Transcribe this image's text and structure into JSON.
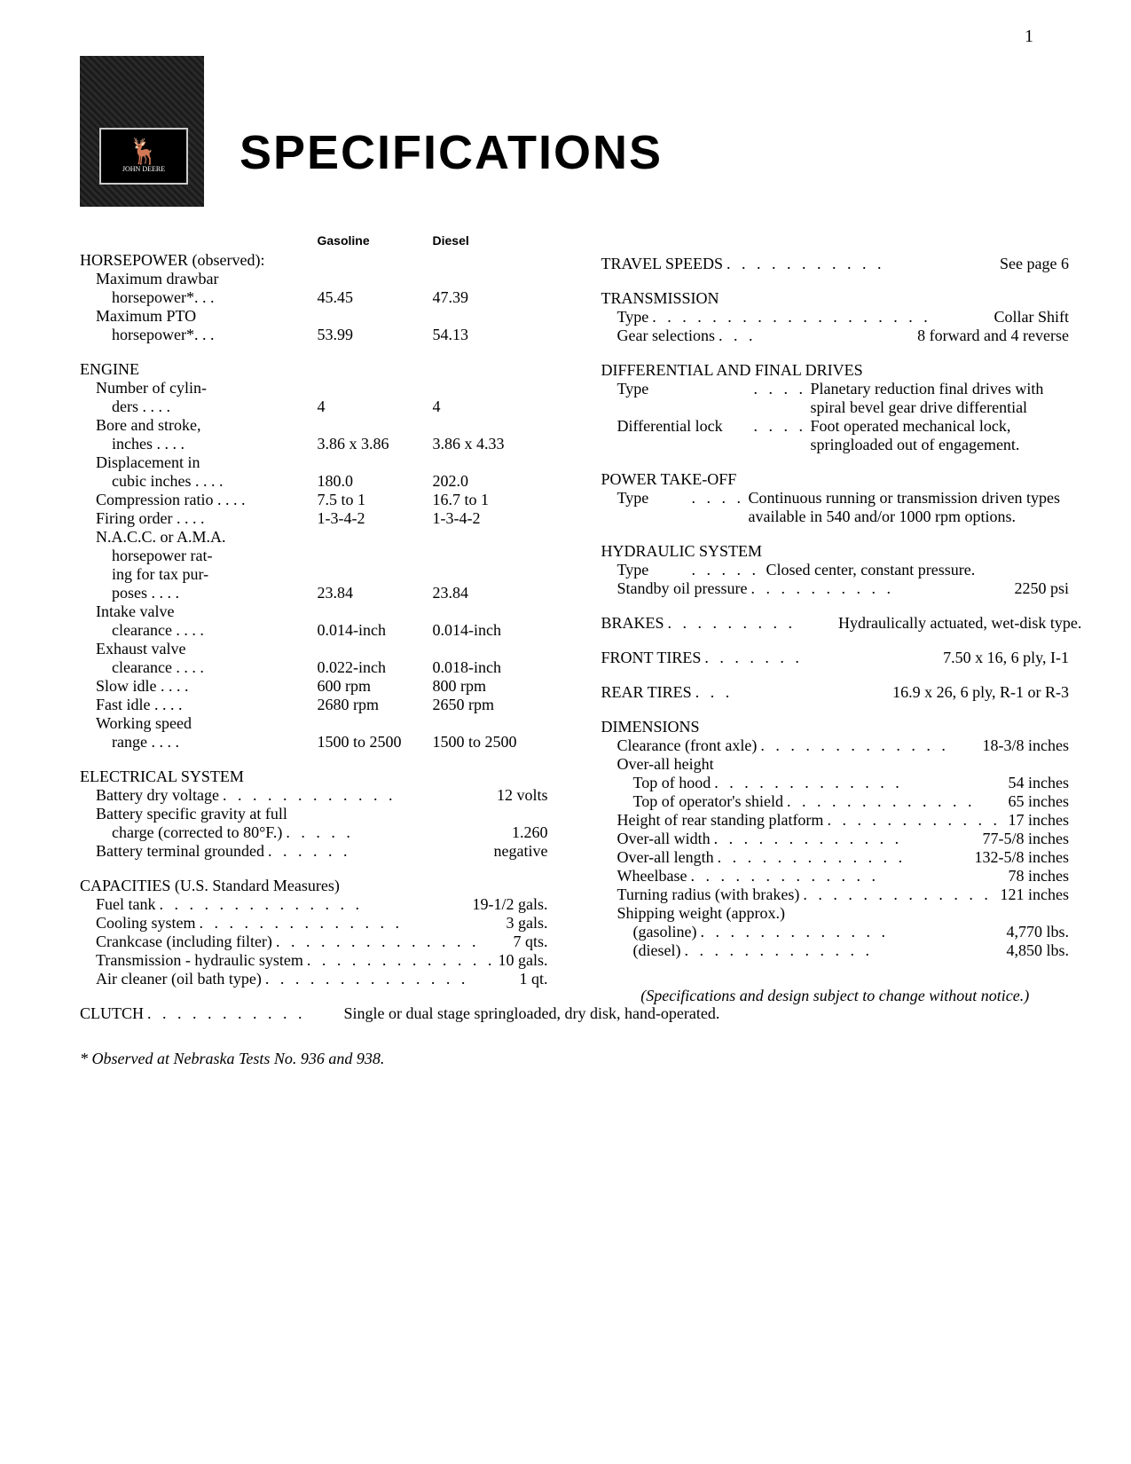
{
  "page_number": "1",
  "logo_brand": "JOHN DEERE",
  "title": "SPECIFICATIONS",
  "col_headers": {
    "c1": "Gasoline",
    "c2": "Diesel"
  },
  "horsepower": {
    "title": "HORSEPOWER (observed):",
    "rows": [
      {
        "label1": "Maximum drawbar",
        "label2": "horsepower*",
        "g": "45.45",
        "d": "47.39"
      },
      {
        "label1": "Maximum PTO",
        "label2": "horsepower*",
        "g": "53.99",
        "d": "54.13"
      }
    ]
  },
  "engine": {
    "title": "ENGINE",
    "rows": [
      {
        "l1": "Number of cylin-",
        "l2": "ders",
        "g": "4",
        "d": "4"
      },
      {
        "l1": "Bore and stroke,",
        "l2": "inches",
        "g": "3.86 x 3.86",
        "d": "3.86 x 4.33"
      },
      {
        "l1": "Displacement in",
        "l2": "cubic inches",
        "g": "180.0",
        "d": "202.0"
      },
      {
        "l1": "Compression ratio",
        "l2": "",
        "g": "7.5 to 1",
        "d": "16.7 to 1"
      },
      {
        "l1": "Firing order",
        "l2": "",
        "g": "1-3-4-2",
        "d": "1-3-4-2"
      },
      {
        "l1": "N.A.C.C. or A.M.A.",
        "l2": "horsepower rat-",
        "l3": "ing for tax pur-",
        "l4": "poses",
        "g": "23.84",
        "d": "23.84"
      },
      {
        "l1": "Intake valve",
        "l2": "clearance",
        "g": "0.014-inch",
        "d": "0.014-inch"
      },
      {
        "l1": "Exhaust valve",
        "l2": "clearance",
        "g": "0.022-inch",
        "d": "0.018-inch"
      },
      {
        "l1": "Slow idle",
        "l2": "",
        "g": "600 rpm",
        "d": "800 rpm"
      },
      {
        "l1": "Fast idle",
        "l2": "",
        "g": "2680 rpm",
        "d": "2650 rpm"
      },
      {
        "l1": "Working speed",
        "l2": "range",
        "g": "1500 to 2500",
        "d": "1500 to 2500"
      }
    ]
  },
  "electrical": {
    "title": "ELECTRICAL SYSTEM",
    "rows": [
      {
        "label": "Battery dry voltage",
        "val": "12 volts"
      },
      {
        "label": "Battery specific gravity at full",
        "label2": "charge (corrected to 80°F.)",
        "val": "1.260"
      },
      {
        "label": "Battery terminal grounded",
        "val": "negative"
      }
    ]
  },
  "capacities": {
    "title": "CAPACITIES (U.S. Standard Measures)",
    "rows": [
      {
        "label": "Fuel tank",
        "val": "19-1/2 gals."
      },
      {
        "label": "Cooling system",
        "val": "3 gals."
      },
      {
        "label": "Crankcase (including filter)",
        "val": "7 qts."
      },
      {
        "label": "Transmission - hydraulic system",
        "val": "10 gals."
      },
      {
        "label": "Air cleaner (oil bath type)",
        "val": "1 qt."
      }
    ]
  },
  "clutch": {
    "label": "CLUTCH",
    "val": "Single or dual stage springloaded, dry disk, hand-operated."
  },
  "left_footnote": "* Observed at Nebraska Tests No. 936 and 938.",
  "travel_speeds": {
    "label": "TRAVEL SPEEDS",
    "val": "See page 6"
  },
  "transmission": {
    "title": "TRANSMISSION",
    "rows": [
      {
        "label": "Type",
        "val": "Collar Shift"
      },
      {
        "label": "Gear selections",
        "val": "8 forward and 4 reverse"
      }
    ]
  },
  "differential": {
    "title": "DIFFERENTIAL AND FINAL DRIVES",
    "rows": [
      {
        "label": "Type",
        "val": "Planetary reduction final drives with spiral bevel gear drive differential"
      },
      {
        "label": "Differential lock",
        "val": "Foot operated mechanical lock, springloaded out of engagement."
      }
    ]
  },
  "pto": {
    "title": "POWER TAKE-OFF",
    "rows": [
      {
        "label": "Type",
        "val": "Continuous running or transmission driven types available in 540 and/or 1000 rpm options."
      }
    ]
  },
  "hydraulic": {
    "title": "HYDRAULIC SYSTEM",
    "rows": [
      {
        "label": "Type",
        "val": "Closed center, constant pressure."
      },
      {
        "label": "Standby oil pressure",
        "val": "2250 psi"
      }
    ]
  },
  "brakes": {
    "label": "BRAKES",
    "val": "Hydraulically actuated, wet-disk type."
  },
  "front_tires": {
    "label": "FRONT TIRES",
    "val": "7.50 x 16, 6 ply, I-1"
  },
  "rear_tires": {
    "label": "REAR TIRES",
    "val": "16.9 x 26, 6 ply, R-1 or R-3"
  },
  "dimensions": {
    "title": "DIMENSIONS",
    "rows": [
      {
        "label": "Clearance (front axle)",
        "val": "18-3/8 inches"
      },
      {
        "label": "Over-all height",
        "val": ""
      },
      {
        "label": "Top of hood",
        "sub": true,
        "val": "54 inches"
      },
      {
        "label": "Top of operator's shield",
        "sub": true,
        "val": "65 inches"
      },
      {
        "label": "Height of rear standing platform",
        "val": "17 inches"
      },
      {
        "label": "Over-all width",
        "val": "77-5/8 inches"
      },
      {
        "label": "Over-all length",
        "val": "132-5/8 inches"
      },
      {
        "label": "Wheelbase",
        "val": "78 inches"
      },
      {
        "label": "Turning radius (with brakes)",
        "val": "121 inches"
      },
      {
        "label": "Shipping weight (approx.)",
        "val": ""
      },
      {
        "label": "(gasoline)",
        "sub": true,
        "val": "4,770 lbs."
      },
      {
        "label": "(diesel)",
        "sub": true,
        "val": "4,850 lbs."
      }
    ]
  },
  "right_footnote": "(Specifications and design subject to change without notice.)"
}
